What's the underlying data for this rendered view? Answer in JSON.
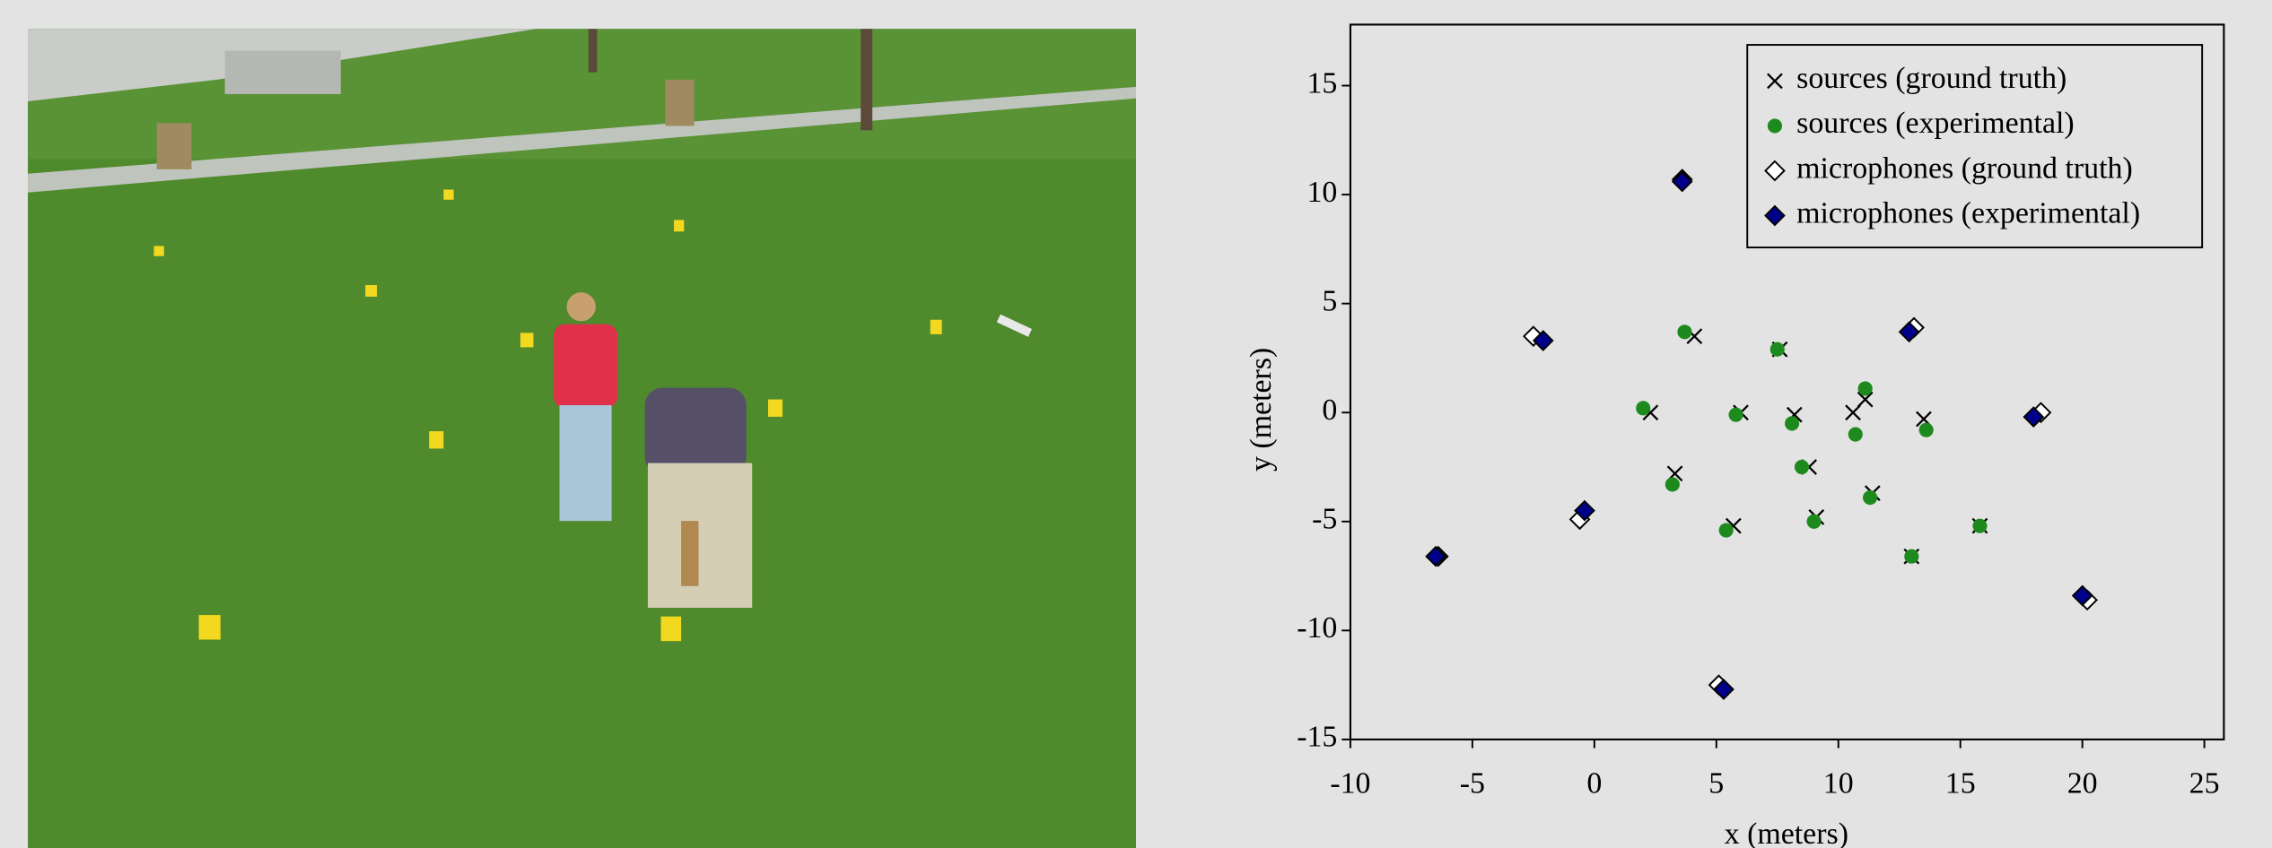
{
  "chart_data": {
    "type": "scatter",
    "xlabel": "x (meters)",
    "ylabel": "y (meters)",
    "xlim": [
      -10,
      25.8
    ],
    "ylim": [
      -15,
      17.8
    ],
    "xticks": [
      -10,
      -5,
      0,
      5,
      10,
      15,
      20,
      25
    ],
    "yticks": [
      -15,
      -10,
      -5,
      0,
      5,
      10,
      15
    ],
    "legend": "upper right",
    "series": [
      {
        "name": "sources (ground truth)",
        "marker": "x",
        "color": "#000000",
        "x": [
          4.1,
          7.6,
          2.3,
          6.0,
          8.2,
          10.6,
          11.1,
          13.5,
          3.3,
          8.8,
          11.4,
          5.7,
          9.1,
          13.0,
          15.8
        ],
        "y": [
          3.5,
          2.9,
          0,
          0,
          -0.1,
          0,
          0.6,
          -0.3,
          -2.8,
          -2.5,
          -3.7,
          -5.2,
          -4.8,
          -6.6,
          -5.2
        ]
      },
      {
        "name": "sources (experimental)",
        "marker": "circle",
        "color": "#1e8a1e",
        "x": [
          3.7,
          7.5,
          2.0,
          5.8,
          8.1,
          11.1,
          10.7,
          13.6,
          3.2,
          8.5,
          11.3,
          5.4,
          9.0,
          13.0,
          15.8
        ],
        "y": [
          3.7,
          2.9,
          0.2,
          -0.1,
          -0.5,
          1.1,
          -1.0,
          -0.8,
          -3.3,
          -2.5,
          -3.9,
          -5.4,
          -5.0,
          -6.6,
          -5.2
        ]
      },
      {
        "name": "microphones (ground truth)",
        "marker": "diamond-open",
        "color": "#000000",
        "x": [
          3.6,
          -2.5,
          13.1,
          18.3,
          -0.6,
          -6.4,
          20.2,
          5.1
        ],
        "y": [
          10.7,
          3.5,
          3.9,
          0,
          -4.9,
          -6.6,
          -8.6,
          -12.5
        ]
      },
      {
        "name": "microphones (experimental)",
        "marker": "diamond",
        "color": "#00008b",
        "x": [
          3.6,
          -2.1,
          12.9,
          18.0,
          -0.4,
          -6.5,
          20.0,
          5.3
        ],
        "y": [
          10.6,
          3.3,
          3.7,
          -0.2,
          -4.5,
          -6.6,
          -8.4,
          -12.7
        ]
      }
    ]
  }
}
